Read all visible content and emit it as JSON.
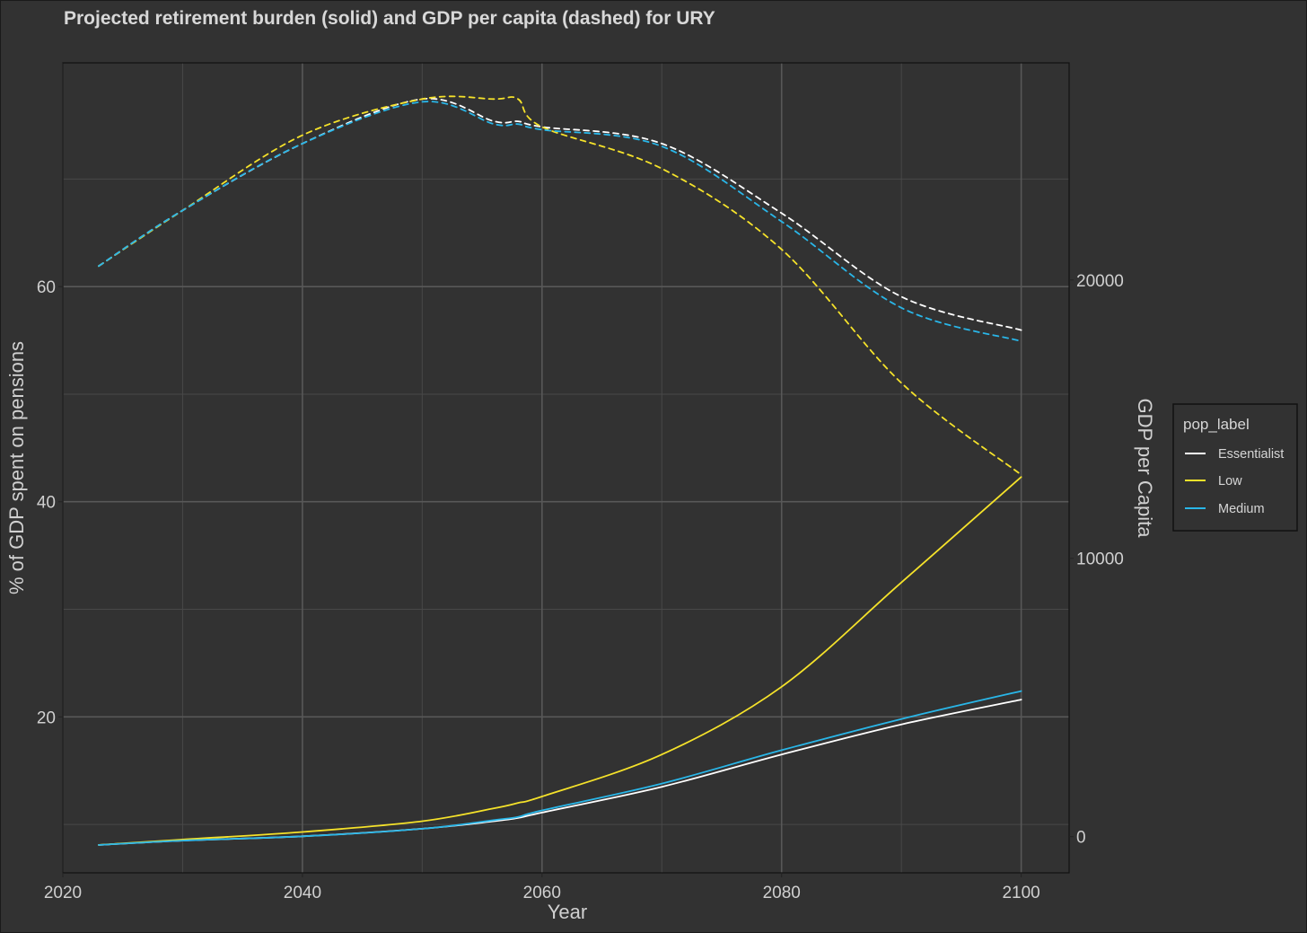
{
  "chart_data": {
    "type": "line",
    "title": "Projected retirement burden (solid) and GDP per capita (dashed) for URY",
    "xlabel": "Year",
    "ylabel": "% of GDP spent on pensions",
    "y2label": "GDP per Capita",
    "xlim": [
      2020,
      2104
    ],
    "ylim": [
      5.5,
      80.8
    ],
    "y2lim": [
      -1300,
      27800
    ],
    "x_ticks": [
      2020,
      2040,
      2060,
      2080,
      2100
    ],
    "x_minor_ticks": [
      2030,
      2050,
      2070,
      2090
    ],
    "y_ticks": [
      20,
      40,
      60
    ],
    "y_minor_ticks": [
      10,
      30,
      50,
      70
    ],
    "y2_ticks": [
      0,
      10000,
      20000
    ],
    "grid": true,
    "legend": {
      "title": "pop_label",
      "position": "right",
      "entries": [
        {
          "name": "Essentialist",
          "color": "#ffffff"
        },
        {
          "name": "Low",
          "color": "#f5e22a"
        },
        {
          "name": "Medium",
          "color": "#29b6e8"
        }
      ]
    },
    "colors": {
      "background": "#323232",
      "panel_border": "#111111",
      "Essentialist": "#ffffff",
      "Low": "#f5e22a",
      "Medium": "#29b6e8"
    },
    "x": [
      2023,
      2030,
      2040,
      2050,
      2056,
      2058,
      2060,
      2070,
      2080,
      2090,
      2100
    ],
    "series": [
      {
        "name": "Essentialist",
        "metric": "pension_share",
        "axis": "left",
        "style": "solid",
        "values": [
          8.1,
          8.5,
          8.9,
          9.6,
          10.3,
          10.6,
          11.1,
          13.5,
          16.5,
          19.3,
          21.6
        ]
      },
      {
        "name": "Low",
        "metric": "pension_share",
        "axis": "left",
        "style": "solid",
        "values": [
          8.1,
          8.6,
          9.3,
          10.3,
          11.5,
          12.0,
          12.6,
          16.5,
          22.8,
          32.5,
          42.3
        ]
      },
      {
        "name": "Medium",
        "metric": "pension_share",
        "axis": "left",
        "style": "solid",
        "values": [
          8.1,
          8.5,
          8.9,
          9.6,
          10.4,
          10.7,
          11.3,
          13.8,
          16.9,
          19.8,
          22.4
        ]
      },
      {
        "name": "Essentialist",
        "metric": "gdp_per_capita",
        "axis": "right",
        "style": "dashed",
        "values": [
          20500,
          22500,
          24900,
          26500,
          25700,
          25700,
          25500,
          24900,
          22400,
          19400,
          18200
        ]
      },
      {
        "name": "Low",
        "metric": "gdp_per_capita",
        "axis": "right",
        "style": "dashed",
        "values": [
          20500,
          22500,
          25200,
          26500,
          26500,
          26500,
          25500,
          24000,
          21100,
          16300,
          13000
        ]
      },
      {
        "name": "Medium",
        "metric": "gdp_per_capita",
        "axis": "right",
        "style": "dashed",
        "values": [
          20500,
          22500,
          24900,
          26400,
          25600,
          25600,
          25400,
          24800,
          22100,
          19000,
          17800
        ]
      }
    ]
  }
}
